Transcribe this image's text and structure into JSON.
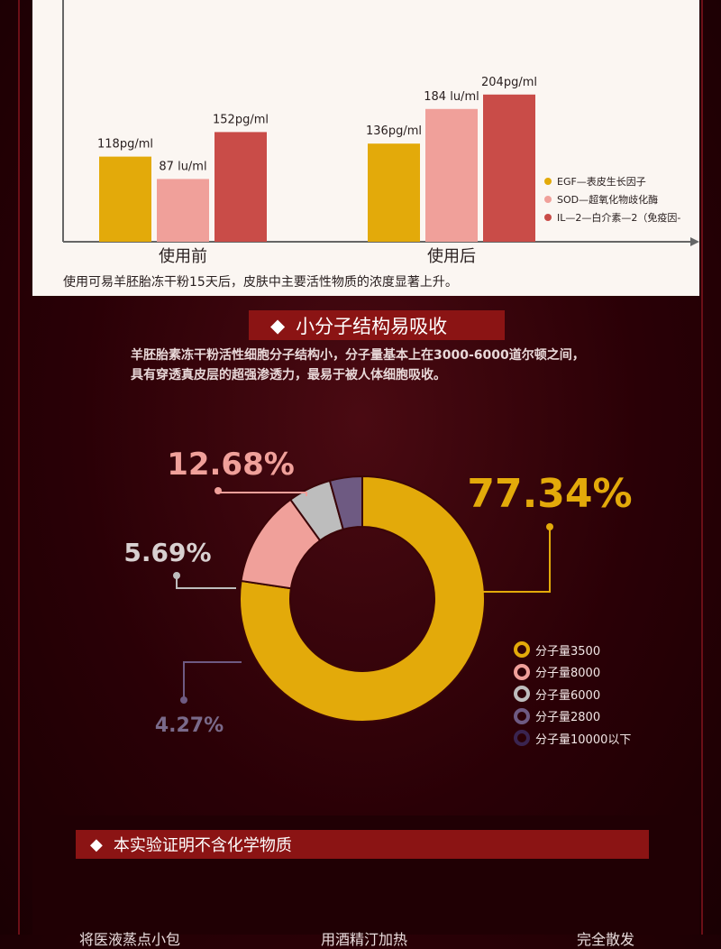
{
  "bar_section": {
    "caption": "使用可易羊胚胎冻干粉15天后，皮肤中主要活性物质的浓度显著上升。"
  },
  "small_molecule": {
    "title": "小分子结构易吸收",
    "desc_lines": [
      "羊胚胎素冻干粉活性细胞分子结构小，分子量基本上在3000-6000道尔顿之间，",
      "具有穿透真皮层的超强渗透力，最易于被人体细胞吸收。"
    ]
  },
  "lower_section": {
    "title": "本实验证明不含化学物质",
    "cut_texts": [
      "将医液蒸点小包",
      "用酒精汀加热",
      "完全散发"
    ]
  },
  "colors": {
    "egf": "#e3aa0a",
    "sod": "#f0a09a",
    "il2": "#c94c48",
    "mw3500": "#e3aa0a",
    "mw8000": "#f0a09a",
    "mw6000": "#bdbdbd",
    "mw2800": "#6e5a82",
    "mw10000": "#3a2450",
    "section_red": "#8b1414"
  },
  "chart_data": [
    {
      "type": "bar",
      "title": "",
      "categories": [
        "使用前",
        "使用后"
      ],
      "series": [
        {
          "name": "EGF—表皮生长因子",
          "color": "#e3aa0a",
          "values": [
            118,
            136
          ],
          "labels": [
            "118pg/ml",
            "136pg/ml"
          ]
        },
        {
          "name": "SOD—超氧化物歧化酶",
          "color": "#f0a09a",
          "values": [
            87,
            184
          ],
          "labels": [
            "87 lu/ml",
            "184 lu/ml"
          ]
        },
        {
          "name": "IL—2—白介素—2（免疫因-",
          "color": "#c94c48",
          "values": [
            152,
            204
          ],
          "labels": [
            "152pg/ml",
            "204pg/ml"
          ]
        }
      ],
      "ylim": [
        0,
        220
      ],
      "grid": false,
      "legend": "right"
    },
    {
      "type": "pie",
      "donut": true,
      "slices": [
        {
          "name": "分子量3500",
          "value": 77.34,
          "label": "77.34%",
          "color": "#e3aa0a",
          "ring": "#e3aa0a"
        },
        {
          "name": "分子量8000",
          "value": 12.68,
          "label": "12.68%",
          "color": "#f0a09a",
          "ring": "#f0a09a"
        },
        {
          "name": "分子量6000",
          "value": 5.69,
          "label": "5.69%",
          "color": "#bdbdbd",
          "ring": "#bdbdbd"
        },
        {
          "name": "分子量2800",
          "value": 4.27,
          "label": "4.27%",
          "color": "#6e5a82",
          "ring": "#6e5a82"
        },
        {
          "name": "分子量10000以下",
          "value": 0,
          "label": "",
          "color": "#3a2450",
          "ring": "#3a2450"
        }
      ],
      "legend": "right"
    }
  ]
}
